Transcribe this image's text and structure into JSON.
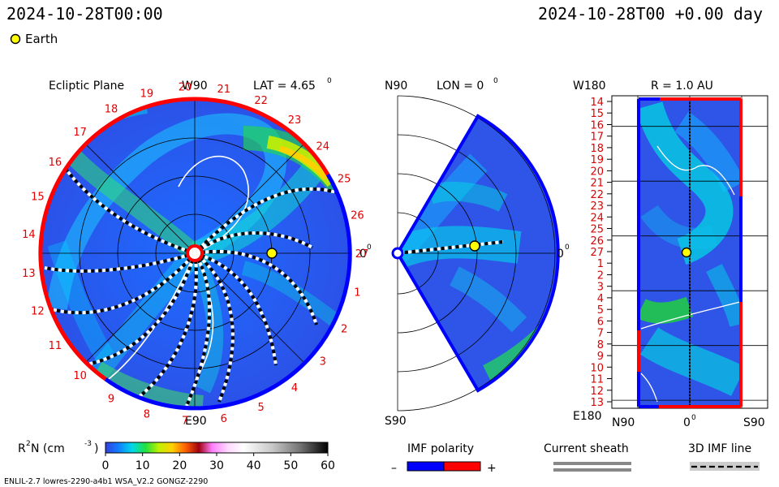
{
  "header": {
    "left_time": "2024-10-28T00:00",
    "right_time": "2024-10-28T00 +0.00 day",
    "legend_label": "Earth"
  },
  "panels": {
    "ecliptic": {
      "title": "Ecliptic Plane",
      "top_label": "W90",
      "bottom_label": "E90",
      "right_label": "0",
      "right_label_sup": "0",
      "lat_text": "LAT = 4.65",
      "lat_sup": "0",
      "hour_labels": [
        "1",
        "2",
        "3",
        "4",
        "5",
        "6",
        "7",
        "8",
        "9",
        "10",
        "11",
        "12",
        "13",
        "14",
        "15",
        "16",
        "17",
        "18",
        "19",
        "20",
        "21",
        "22",
        "23",
        "24",
        "25",
        "26",
        "27"
      ]
    },
    "meridional": {
      "top_label": "N90",
      "bottom_label": "S90",
      "lon_text": "LON = 0",
      "lon_sup": "0",
      "right_label": "0",
      "right_label_sup": "0"
    },
    "radial": {
      "title": "R = 1.0 AU",
      "top_left": "W180",
      "bottom_left": "E180",
      "x_labels": [
        "N90",
        "0",
        "S90"
      ],
      "x_mid_sup": "0",
      "y_labels": [
        "14",
        "15",
        "16",
        "17",
        "18",
        "19",
        "20",
        "21",
        "22",
        "23",
        "24",
        "25",
        "26",
        "27",
        "1",
        "2",
        "3",
        "4",
        "5",
        "6",
        "7",
        "8",
        "9",
        "10",
        "11",
        "12",
        "13"
      ]
    }
  },
  "colorbar": {
    "label": "R",
    "label_sup": "2",
    "label_rest": " N (cm",
    "label_sup2": "-3",
    "label_end": ")",
    "ticks": [
      "0",
      "10",
      "20",
      "30",
      "40",
      "50",
      "60"
    ],
    "min": 0,
    "max": 60
  },
  "legends": {
    "imf_title": "IMF polarity",
    "imf_minus": "–",
    "imf_plus": "+",
    "sheath_title": "Current sheath",
    "imf3d_title": "3D IMF line"
  },
  "footer": {
    "left": "ENLIL-2.7 lowres-2290-a4b1 WSA_V2.2 GONGZ-2290"
  },
  "colors": {
    "positive_polarity": "#ff0000",
    "negative_polarity": "#0000ff",
    "earth": "#ffff00",
    "background_field": "#3a5ae8",
    "hour_label": "#e00000"
  }
}
